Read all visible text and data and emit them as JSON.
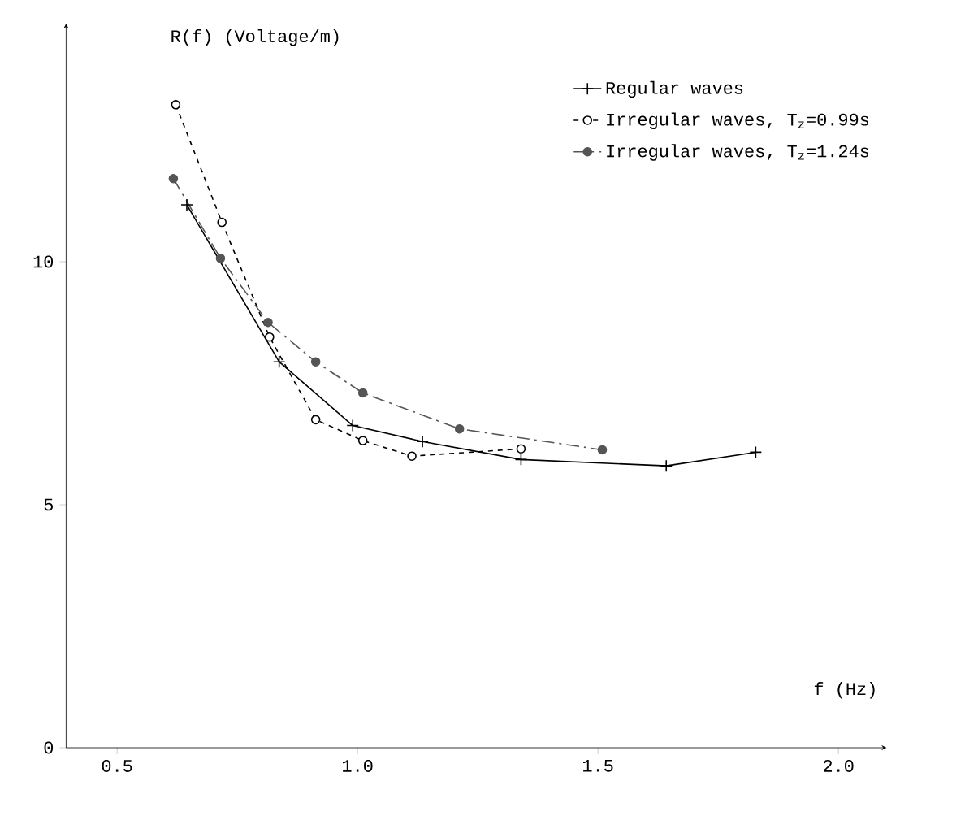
{
  "chart_data": {
    "type": "line",
    "xlabel": "f  (Hz)",
    "ylabel": "R(f)  (Voltage/m)",
    "xlim": [
      0.394,
      2.1
    ],
    "ylim": [
      0,
      14.9
    ],
    "xticks": [
      0.5,
      {
        "value": 1.0,
        "label": "1.0"
      },
      1.5,
      {
        "value": 2.0,
        "label": "2.0"
      }
    ],
    "yticks": [
      0,
      5,
      10
    ],
    "legend": "top right",
    "series": [
      {
        "name": "Regular waves",
        "color": "#000000",
        "marker": "cross",
        "line_style": "solid",
        "x": [
          0.645,
          0.837,
          0.99,
          1.135,
          1.34,
          1.642,
          1.828
        ],
        "values": [
          11.17,
          7.94,
          6.63,
          6.3,
          5.93,
          5.8,
          6.08
        ]
      },
      {
        "name": "Irregular waves, T$_{z}$=0.99s",
        "color": "#000000",
        "marker": "circle",
        "line_style": "dashed",
        "x": [
          0.622,
          0.718,
          0.817,
          0.913,
          1.011,
          1.113,
          1.34
        ],
        "values": [
          13.23,
          10.81,
          8.45,
          6.75,
          6.32,
          6.0,
          6.15
        ]
      },
      {
        "name": "Irregular waves, T$_{z}$=1.24s",
        "color": "#555555",
        "marker": "circle",
        "line_style": "dashdot",
        "x": [
          0.617,
          0.715,
          0.814,
          0.913,
          1.011,
          1.212,
          1.509
        ],
        "values": [
          11.71,
          10.07,
          8.75,
          7.94,
          7.3,
          6.56,
          6.13
        ]
      }
    ]
  }
}
